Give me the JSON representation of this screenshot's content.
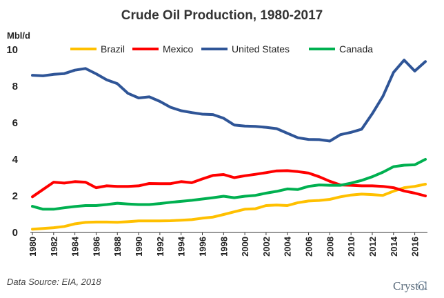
{
  "chart_data": {
    "type": "line",
    "title": "Crude Oil Production, 1980-2017",
    "ylabel": "Mbl/d",
    "xlabel": "",
    "ylim": [
      0,
      10
    ],
    "yticks": [
      0,
      2,
      4,
      6,
      8,
      10
    ],
    "xtick_labels": [
      "1980",
      "1982",
      "1984",
      "1986",
      "1988",
      "1990",
      "1992",
      "1994",
      "1996",
      "1998",
      "2000",
      "2002",
      "2004",
      "2006",
      "2008",
      "2010",
      "2012",
      "2014",
      "2016"
    ],
    "x": [
      1980,
      1981,
      1982,
      1983,
      1984,
      1985,
      1986,
      1987,
      1988,
      1989,
      1990,
      1991,
      1992,
      1993,
      1994,
      1995,
      1996,
      1997,
      1998,
      1999,
      2000,
      2001,
      2002,
      2003,
      2004,
      2005,
      2006,
      2007,
      2008,
      2009,
      2010,
      2011,
      2012,
      2013,
      2014,
      2015,
      2016,
      2017
    ],
    "grid": false,
    "legend_position": "top",
    "series": [
      {
        "name": "Brazil",
        "color": "#ffc000",
        "values": [
          0.18,
          0.22,
          0.26,
          0.33,
          0.47,
          0.55,
          0.57,
          0.57,
          0.56,
          0.59,
          0.63,
          0.63,
          0.63,
          0.64,
          0.67,
          0.7,
          0.78,
          0.84,
          0.98,
          1.13,
          1.27,
          1.3,
          1.47,
          1.5,
          1.47,
          1.63,
          1.72,
          1.75,
          1.81,
          1.95,
          2.05,
          2.1,
          2.07,
          2.03,
          2.26,
          2.45,
          2.52,
          2.64
        ]
      },
      {
        "name": "Mexico",
        "color": "#ff0000",
        "values": [
          1.95,
          2.35,
          2.75,
          2.7,
          2.78,
          2.75,
          2.45,
          2.55,
          2.52,
          2.52,
          2.55,
          2.68,
          2.67,
          2.67,
          2.78,
          2.72,
          2.93,
          3.12,
          3.17,
          3.0,
          3.1,
          3.18,
          3.27,
          3.37,
          3.38,
          3.33,
          3.25,
          3.05,
          2.8,
          2.6,
          2.58,
          2.55,
          2.55,
          2.52,
          2.45,
          2.27,
          2.15,
          2.0
        ]
      },
      {
        "name": "United States",
        "color": "#2f5597",
        "values": [
          8.6,
          8.57,
          8.65,
          8.69,
          8.88,
          8.97,
          8.68,
          8.35,
          8.14,
          7.61,
          7.36,
          7.42,
          7.17,
          6.85,
          6.66,
          6.56,
          6.47,
          6.45,
          6.25,
          5.88,
          5.82,
          5.8,
          5.75,
          5.68,
          5.43,
          5.18,
          5.09,
          5.08,
          5.0,
          5.35,
          5.48,
          5.65,
          6.5,
          7.45,
          8.76,
          9.43,
          8.83,
          9.35
        ]
      },
      {
        "name": "Canada",
        "color": "#00b050",
        "values": [
          1.43,
          1.27,
          1.27,
          1.35,
          1.42,
          1.47,
          1.47,
          1.53,
          1.6,
          1.56,
          1.53,
          1.53,
          1.58,
          1.65,
          1.7,
          1.76,
          1.83,
          1.9,
          1.98,
          1.9,
          1.98,
          2.03,
          2.15,
          2.25,
          2.38,
          2.35,
          2.52,
          2.6,
          2.58,
          2.58,
          2.7,
          2.85,
          3.05,
          3.3,
          3.6,
          3.68,
          3.7,
          4.0
        ]
      }
    ]
  },
  "source_note": "Data Source: EIA, 2018",
  "logo_text": "Crystol"
}
